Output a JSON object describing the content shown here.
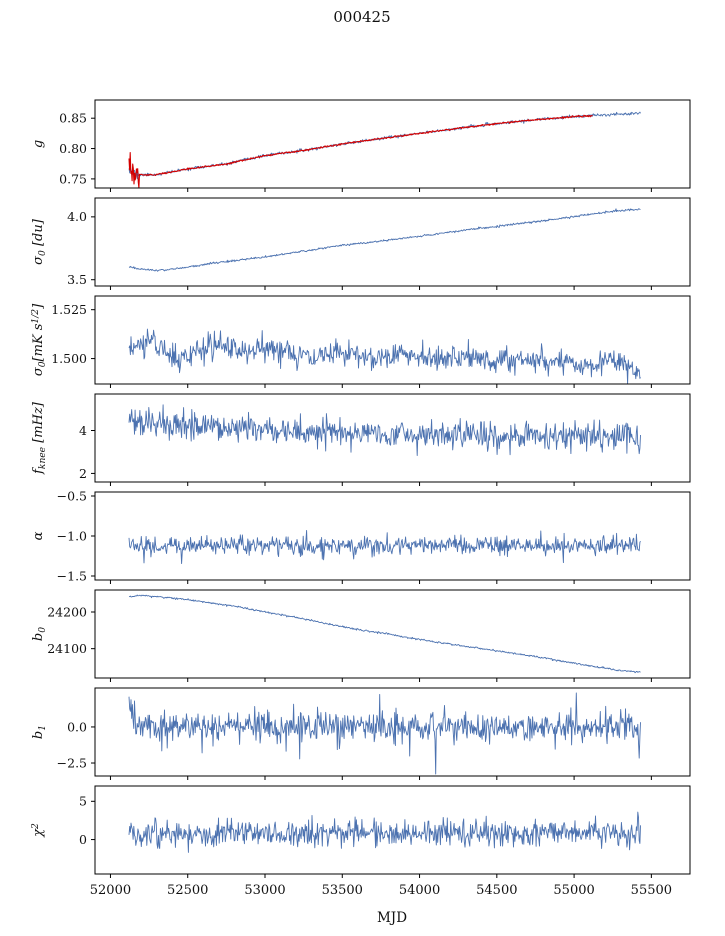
{
  "title": "000425",
  "chart_data": {
    "type": "line",
    "title": "000425",
    "xlabel": "MJD",
    "xlim": [
      51900,
      55750
    ],
    "xticks": [
      52000,
      52500,
      53000,
      53500,
      54000,
      54500,
      55000,
      55500
    ],
    "x_range": [
      52120,
      55430
    ],
    "colors": {
      "data": "#4c72b0",
      "fit": "#d40000",
      "axis": "#000000"
    },
    "panels": [
      {
        "name": "g",
        "ylabel": "g",
        "yticks": [
          0.75,
          0.8,
          0.85
        ],
        "ytick_labels": [
          "0.75",
          "0.80",
          "0.85"
        ],
        "ylim": [
          0.735,
          0.88
        ],
        "series": [
          {
            "name": "g-data",
            "color": "#4c72b0",
            "noise": 0.0012,
            "seed": 11,
            "spike": {
              "x_end": 52190,
              "amp": 0.004
            },
            "trend": [
              [
                52120,
                0.772
              ],
              [
                52140,
                0.76
              ],
              [
                52200,
                0.7565
              ],
              [
                52300,
                0.757
              ],
              [
                52500,
                0.7665
              ],
              [
                52750,
                0.7745
              ],
              [
                53000,
                0.7885
              ],
              [
                53250,
                0.797
              ],
              [
                53500,
                0.8075
              ],
              [
                53750,
                0.8165
              ],
              [
                54000,
                0.825
              ],
              [
                54250,
                0.8335
              ],
              [
                54500,
                0.841
              ],
              [
                54750,
                0.8475
              ],
              [
                55000,
                0.8525
              ],
              [
                55200,
                0.8555
              ],
              [
                55430,
                0.859
              ]
            ]
          },
          {
            "name": "g-fit",
            "color": "#d40000",
            "noise": 0.0006,
            "seed": 12,
            "width": 1.1,
            "x_range": [
              52120,
              55120
            ],
            "spike": {
              "x_end": 52190,
              "amp": 0.011
            },
            "trend": [
              [
                52120,
                0.772
              ],
              [
                52140,
                0.76
              ],
              [
                52200,
                0.7565
              ],
              [
                52300,
                0.757
              ],
              [
                52500,
                0.7665
              ],
              [
                52750,
                0.7745
              ],
              [
                53000,
                0.7885
              ],
              [
                53250,
                0.797
              ],
              [
                53500,
                0.8075
              ],
              [
                53750,
                0.8165
              ],
              [
                54000,
                0.825
              ],
              [
                54250,
                0.8335
              ],
              [
                54500,
                0.841
              ],
              [
                54750,
                0.8475
              ],
              [
                55000,
                0.8525
              ],
              [
                55120,
                0.854
              ]
            ]
          }
        ]
      },
      {
        "name": "sigma0-du",
        "ylabel": "σ|0| [du]",
        "yticks": [
          3.5,
          4.0
        ],
        "ytick_labels": [
          "3.5",
          "4.0"
        ],
        "ylim": [
          3.45,
          4.15
        ],
        "series": [
          {
            "name": "sigma0-du-data",
            "color": "#4c72b0",
            "noise": 0.004,
            "seed": 21,
            "trend": [
              [
                52120,
                3.605
              ],
              [
                52170,
                3.59
              ],
              [
                52250,
                3.575
              ],
              [
                52350,
                3.577
              ],
              [
                52500,
                3.6
              ],
              [
                52700,
                3.638
              ],
              [
                52900,
                3.665
              ],
              [
                53100,
                3.7
              ],
              [
                53300,
                3.737
              ],
              [
                53500,
                3.775
              ],
              [
                53700,
                3.8
              ],
              [
                53900,
                3.83
              ],
              [
                54100,
                3.862
              ],
              [
                54300,
                3.895
              ],
              [
                54500,
                3.925
              ],
              [
                54700,
                3.955
              ],
              [
                54900,
                3.985
              ],
              [
                55100,
                4.02
              ],
              [
                55250,
                4.045
              ],
              [
                55350,
                4.055
              ],
              [
                55430,
                4.06
              ]
            ]
          }
        ]
      },
      {
        "name": "sigma0-mk",
        "ylabel": "σ|0|[mK s^1/2^]",
        "yticks": [
          1.5,
          1.525
        ],
        "ytick_labels": [
          "1.500",
          "1.525"
        ],
        "ylim": [
          1.487,
          1.532
        ],
        "series": [
          {
            "name": "sigma0-mk-data",
            "color": "#4c72b0",
            "noise": 0.0032,
            "seed": 31,
            "trend": [
              [
                52120,
                1.504
              ],
              [
                52250,
                1.5095
              ],
              [
                52350,
                1.506
              ],
              [
                52430,
                1.4975
              ],
              [
                52550,
                1.5045
              ],
              [
                52700,
                1.5065
              ],
              [
                52900,
                1.5035
              ],
              [
                53100,
                1.5055
              ],
              [
                53300,
                1.4995
              ],
              [
                53500,
                1.5035
              ],
              [
                53700,
                1.501
              ],
              [
                53900,
                1.5025
              ],
              [
                54100,
                1.5005
              ],
              [
                54300,
                1.501
              ],
              [
                54500,
                1.4985
              ],
              [
                54700,
                1.4995
              ],
              [
                54900,
                1.4985
              ],
              [
                55100,
                1.4975
              ],
              [
                55250,
                1.4985
              ],
              [
                55430,
                1.4935
              ]
            ]
          }
        ]
      },
      {
        "name": "fknee",
        "ylabel": "f|knee| [mHz]",
        "yticks": [
          2,
          4
        ],
        "ytick_labels": [
          "2",
          "4"
        ],
        "ylim": [
          1.6,
          5.7
        ],
        "series": [
          {
            "name": "fknee-data",
            "color": "#4c72b0",
            "noise": 0.33,
            "seed": 41,
            "spike_prob": 0.03,
            "spike_amp": 0.7,
            "trend": [
              [
                52120,
                4.55
              ],
              [
                52200,
                4.35
              ],
              [
                52400,
                4.25
              ],
              [
                52700,
                4.15
              ],
              [
                53000,
                4.05
              ],
              [
                53500,
                3.95
              ],
              [
                54000,
                3.85
              ],
              [
                54500,
                3.8
              ],
              [
                55000,
                3.75
              ],
              [
                55430,
                3.7
              ]
            ]
          }
        ]
      },
      {
        "name": "alpha",
        "ylabel": "α",
        "yticks": [
          -1.5,
          -1.0,
          -0.5
        ],
        "ytick_labels": [
          "−1.5",
          "−1.0",
          "−0.5"
        ],
        "ylim": [
          -1.55,
          -0.45
        ],
        "series": [
          {
            "name": "alpha-data",
            "color": "#4c72b0",
            "noise": 0.055,
            "seed": 51,
            "spike_prob": 0.012,
            "spike_amp": 0.28,
            "trend": [
              [
                52120,
                -1.12
              ],
              [
                55430,
                -1.12
              ]
            ]
          }
        ]
      },
      {
        "name": "b0",
        "ylabel": "b|0|",
        "yticks": [
          24100,
          24200
        ],
        "ytick_labels": [
          "24100",
          "24200"
        ],
        "ylim": [
          24020,
          24260
        ],
        "series": [
          {
            "name": "b0-data",
            "color": "#4c72b0",
            "noise": 1.2,
            "seed": 61,
            "trend": [
              [
                52120,
                24242
              ],
              [
                52200,
                24245
              ],
              [
                52300,
                24242
              ],
              [
                52450,
                24236
              ],
              [
                52600,
                24228
              ],
              [
                52800,
                24216
              ],
              [
                53000,
                24200
              ],
              [
                53200,
                24185
              ],
              [
                53400,
                24168
              ],
              [
                53600,
                24152
              ],
              [
                53800,
                24140
              ],
              [
                54000,
                24125
              ],
              [
                54200,
                24112
              ],
              [
                54400,
                24100
              ],
              [
                54600,
                24088
              ],
              [
                54800,
                24075
              ],
              [
                55000,
                24060
              ],
              [
                55150,
                24050
              ],
              [
                55300,
                24040
              ],
              [
                55430,
                24037
              ]
            ]
          }
        ]
      },
      {
        "name": "b1",
        "ylabel": "b|1|",
        "yticks": [
          -2.5,
          0.0
        ],
        "ytick_labels": [
          "−2.5",
          "0.0"
        ],
        "ylim": [
          -3.4,
          2.7
        ],
        "series": [
          {
            "name": "b1-data",
            "color": "#4c72b0",
            "noise": 0.5,
            "seed": 71,
            "spike_prob": 0.05,
            "spike_amp": 1.8,
            "trend": [
              [
                52120,
                1.9
              ],
              [
                52135,
                1.2
              ],
              [
                52170,
                0.25
              ],
              [
                52300,
                0.05
              ],
              [
                55430,
                0.0
              ]
            ]
          }
        ]
      },
      {
        "name": "chi2",
        "ylabel": "χ^2^",
        "yticks": [
          0,
          5
        ],
        "ytick_labels": [
          "0",
          "5"
        ],
        "ylim": [
          -4.5,
          7.0
        ],
        "series": [
          {
            "name": "chi2-data",
            "color": "#4c72b0",
            "noise": 0.85,
            "seed": 81,
            "spike_prob": 0.012,
            "spike_amp": 2.4,
            "trend": [
              [
                52120,
                0.8
              ],
              [
                55430,
                0.8
              ]
            ]
          }
        ]
      }
    ]
  }
}
